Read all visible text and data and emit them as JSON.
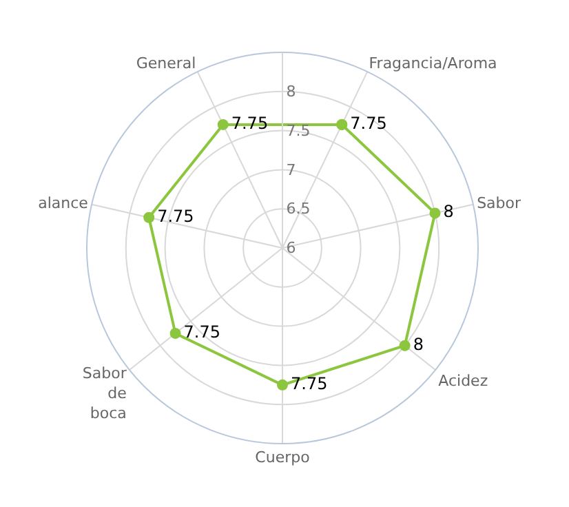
{
  "chart_data": {
    "type": "radar",
    "categories": [
      "Fragancia/Aroma",
      "Sabor",
      "Acidez",
      "Cuerpo",
      "Sabor de boca",
      "alance",
      "General"
    ],
    "series": [
      {
        "color": "#8cc63e",
        "values": [
          7.75,
          8,
          8,
          7.75,
          7.75,
          7.75,
          7.75
        ]
      }
    ],
    "ylim": [
      6,
      8.5
    ],
    "yticks": [
      6,
      6.5,
      7,
      7.5,
      8
    ],
    "grid": true,
    "marker": "circle",
    "data_labels": true,
    "legend": false
  }
}
